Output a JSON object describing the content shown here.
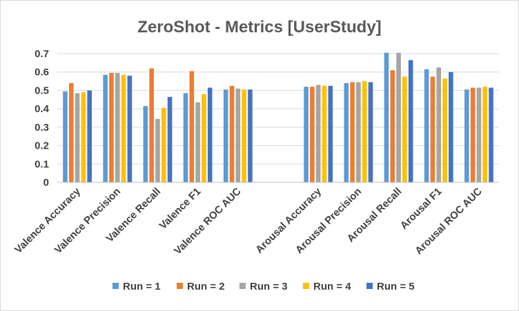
{
  "chart_data": {
    "type": "bar",
    "title": "ZeroShot - Metrics [UserStudy]",
    "xlabel": "",
    "ylabel": "",
    "ylim": [
      0,
      0.7
    ],
    "y_ticks": [
      "0",
      "0.1",
      "0.2",
      "0.3",
      "0.4",
      "0.5",
      "0.6",
      "0.7"
    ],
    "grid": true,
    "legend_position": "bottom",
    "categories": [
      "Valence Accuracy",
      "Valence Precision",
      "Valence Recall",
      "Valence F1",
      "Valence ROC AUC",
      "",
      "Arousal Accuracy",
      "Arousal Precision",
      "Arousal Recall",
      "Arousal F1",
      "Arousal ROC AUC"
    ],
    "series": [
      {
        "name": "Run = 1",
        "color": "#5B9BD5",
        "values": [
          0.495,
          0.585,
          0.415,
          0.485,
          0.505,
          null,
          0.52,
          0.54,
          0.705,
          0.615,
          0.505
        ]
      },
      {
        "name": "Run = 2",
        "color": "#ED7D31",
        "values": [
          0.54,
          0.595,
          0.62,
          0.605,
          0.525,
          null,
          0.52,
          0.545,
          0.61,
          0.575,
          0.515
        ]
      },
      {
        "name": "Run = 3",
        "color": "#A5A5A5",
        "values": [
          0.485,
          0.595,
          0.345,
          0.435,
          0.51,
          null,
          0.53,
          0.545,
          0.705,
          0.625,
          0.515
        ]
      },
      {
        "name": "Run = 4",
        "color": "#FFC000",
        "values": [
          0.49,
          0.585,
          0.405,
          0.48,
          0.505,
          null,
          0.525,
          0.55,
          0.575,
          0.565,
          0.52
        ]
      },
      {
        "name": "Run = 5",
        "color": "#4472C4",
        "values": [
          0.5,
          0.58,
          0.465,
          0.515,
          0.505,
          null,
          0.525,
          0.545,
          0.665,
          0.6,
          0.515
        ]
      }
    ]
  }
}
